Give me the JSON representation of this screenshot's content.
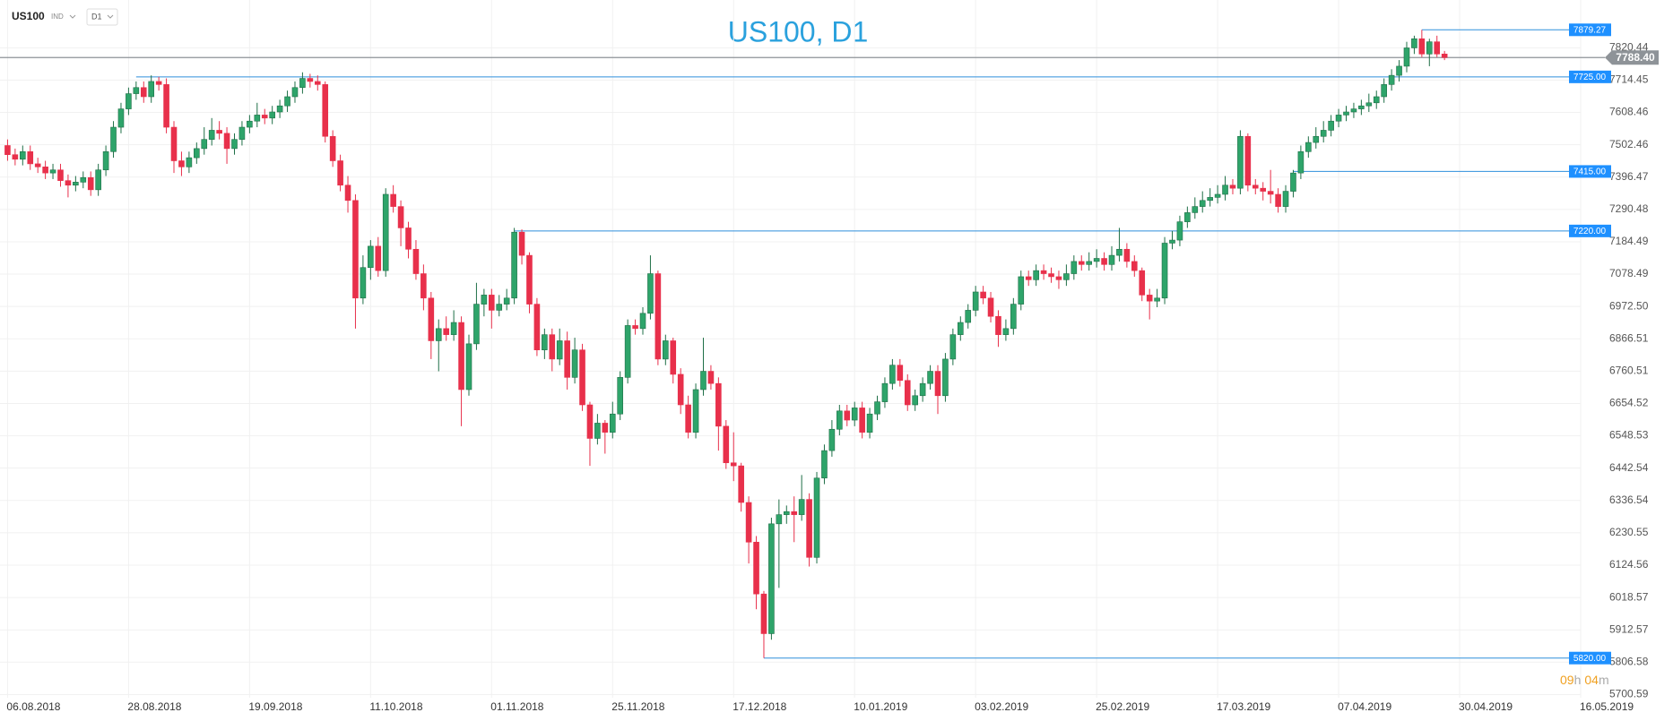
{
  "header": {
    "symbol": "US100",
    "group": "IND",
    "interval": "D1"
  },
  "chart_data": {
    "type": "candlestick",
    "title": "US100, D1",
    "xlim": [
      -1,
      208
    ],
    "xticks": [
      {
        "value": 0,
        "label": "06.08.2018"
      },
      {
        "value": 16,
        "label": "28.08.2018"
      },
      {
        "value": 32,
        "label": "19.09.2018"
      },
      {
        "value": 48,
        "label": "11.10.2018"
      },
      {
        "value": 64,
        "label": "01.11.2018"
      },
      {
        "value": 80,
        "label": "25.11.2018"
      },
      {
        "value": 96,
        "label": "17.12.2018"
      },
      {
        "value": 112,
        "label": "10.01.2019"
      },
      {
        "value": 128,
        "label": "03.02.2019"
      },
      {
        "value": 144,
        "label": "25.02.2019"
      },
      {
        "value": 160,
        "label": "17.03.2019"
      },
      {
        "value": 176,
        "label": "07.04.2019"
      },
      {
        "value": 192,
        "label": "30.04.2019"
      },
      {
        "value": 208,
        "label": "16.05.2019"
      }
    ],
    "ylim": [
      5690,
      7977
    ],
    "yticks": [
      7820.44,
      7714.45,
      7608.46,
      7502.46,
      7396.47,
      7290.48,
      7184.49,
      7078.49,
      {
        "value": 6972.5,
        "label": "6972.50"
      },
      6866.51,
      6760.51,
      6654.52,
      6548.53,
      6442.54,
      6336.54,
      6230.55,
      6124.56,
      6018.57,
      5912.57,
      5806.58,
      5700.59
    ],
    "grid": true,
    "up_color": "#2ea46a",
    "down_color": "#e8304b",
    "level_color": "#2f8fdc",
    "price_color": "#8e9398",
    "ohlc": [
      [
        7500,
        7520,
        7450,
        7470
      ],
      [
        7470,
        7490,
        7435,
        7455
      ],
      [
        7455,
        7500,
        7435,
        7480
      ],
      [
        7480,
        7500,
        7420,
        7440
      ],
      [
        7440,
        7460,
        7410,
        7430
      ],
      [
        7430,
        7450,
        7390,
        7410
      ],
      [
        7410,
        7440,
        7390,
        7420
      ],
      [
        7420,
        7440,
        7365,
        7385
      ],
      [
        7385,
        7405,
        7330,
        7370
      ],
      [
        7370,
        7400,
        7350,
        7380
      ],
      [
        7380,
        7415,
        7360,
        7395
      ],
      [
        7395,
        7415,
        7335,
        7355
      ],
      [
        7355,
        7440,
        7335,
        7420
      ],
      [
        7420,
        7500,
        7400,
        7480
      ],
      [
        7480,
        7580,
        7460,
        7560
      ],
      [
        7560,
        7640,
        7540,
        7620
      ],
      [
        7620,
        7690,
        7600,
        7670
      ],
      [
        7670,
        7710,
        7650,
        7690
      ],
      [
        7690,
        7710,
        7640,
        7660
      ],
      [
        7660,
        7730,
        7640,
        7710
      ],
      [
        7710,
        7725,
        7680,
        7700
      ],
      [
        7700,
        7720,
        7540,
        7560
      ],
      [
        7560,
        7580,
        7410,
        7450
      ],
      [
        7450,
        7480,
        7400,
        7430
      ],
      [
        7430,
        7480,
        7410,
        7460
      ],
      [
        7460,
        7510,
        7440,
        7490
      ],
      [
        7490,
        7560,
        7470,
        7520
      ],
      [
        7520,
        7590,
        7500,
        7550
      ],
      [
        7550,
        7580,
        7520,
        7540
      ],
      [
        7540,
        7560,
        7440,
        7490
      ],
      [
        7490,
        7540,
        7470,
        7520
      ],
      [
        7520,
        7580,
        7500,
        7560
      ],
      [
        7560,
        7600,
        7540,
        7580
      ],
      [
        7580,
        7640,
        7560,
        7600
      ],
      [
        7600,
        7620,
        7570,
        7590
      ],
      [
        7590,
        7630,
        7570,
        7610
      ],
      [
        7610,
        7650,
        7590,
        7630
      ],
      [
        7630,
        7680,
        7610,
        7660
      ],
      [
        7660,
        7710,
        7640,
        7690
      ],
      [
        7690,
        7740,
        7670,
        7720
      ],
      [
        7720,
        7735,
        7690,
        7710
      ],
      [
        7710,
        7730,
        7680,
        7700
      ],
      [
        7700,
        7710,
        7510,
        7530
      ],
      [
        7530,
        7550,
        7430,
        7450
      ],
      [
        7450,
        7470,
        7350,
        7370
      ],
      [
        7370,
        7400,
        7280,
        7320
      ],
      [
        7320,
        7340,
        6900,
        7000
      ],
      [
        7000,
        7140,
        6980,
        7100
      ],
      [
        7100,
        7190,
        7060,
        7170
      ],
      [
        7170,
        7200,
        7070,
        7090
      ],
      [
        7090,
        7360,
        7070,
        7340
      ],
      [
        7340,
        7370,
        7280,
        7300
      ],
      [
        7300,
        7320,
        7170,
        7230
      ],
      [
        7230,
        7250,
        7130,
        7160
      ],
      [
        7160,
        7190,
        7060,
        7080
      ],
      [
        7080,
        7110,
        6960,
        7000
      ],
      [
        7000,
        7020,
        6800,
        6860
      ],
      [
        6860,
        6930,
        6760,
        6900
      ],
      [
        6900,
        6940,
        6860,
        6880
      ],
      [
        6880,
        6960,
        6860,
        6920
      ],
      [
        6920,
        6940,
        6580,
        6700
      ],
      [
        6700,
        6880,
        6680,
        6850
      ],
      [
        6850,
        7050,
        6830,
        6980
      ],
      [
        6980,
        7030,
        6940,
        7010
      ],
      [
        7010,
        7030,
        6900,
        6960
      ],
      [
        6960,
        7010,
        6940,
        6980
      ],
      [
        6980,
        7030,
        6960,
        7000
      ],
      [
        7000,
        7230,
        6980,
        7216
      ],
      [
        7216,
        7225,
        7110,
        7140
      ],
      [
        7140,
        7150,
        6950,
        6980
      ],
      [
        6980,
        7000,
        6810,
        6830
      ],
      [
        6830,
        6900,
        6800,
        6880
      ],
      [
        6880,
        6900,
        6760,
        6800
      ],
      [
        6800,
        6900,
        6780,
        6860
      ],
      [
        6860,
        6890,
        6700,
        6740
      ],
      [
        6740,
        6870,
        6720,
        6830
      ],
      [
        6830,
        6850,
        6630,
        6650
      ],
      [
        6650,
        6660,
        6450,
        6540
      ],
      [
        6540,
        6620,
        6520,
        6590
      ],
      [
        6590,
        6600,
        6490,
        6560
      ],
      [
        6560,
        6660,
        6540,
        6620
      ],
      [
        6620,
        6760,
        6600,
        6740
      ],
      [
        6740,
        6930,
        6720,
        6910
      ],
      [
        6910,
        6930,
        6880,
        6900
      ],
      [
        6900,
        6970,
        6880,
        6950
      ],
      [
        6950,
        7140,
        6930,
        7080
      ],
      [
        7080,
        7090,
        6780,
        6800
      ],
      [
        6800,
        6880,
        6780,
        6860
      ],
      [
        6860,
        6870,
        6720,
        6750
      ],
      [
        6750,
        6770,
        6620,
        6650
      ],
      [
        6650,
        6680,
        6540,
        6560
      ],
      [
        6560,
        6720,
        6540,
        6700
      ],
      [
        6700,
        6870,
        6680,
        6760
      ],
      [
        6760,
        6780,
        6700,
        6720
      ],
      [
        6720,
        6740,
        6500,
        6580
      ],
      [
        6580,
        6600,
        6440,
        6460
      ],
      [
        6460,
        6560,
        6400,
        6450
      ],
      [
        6450,
        6460,
        6300,
        6330
      ],
      [
        6330,
        6350,
        6130,
        6200
      ],
      [
        6200,
        6220,
        5980,
        6030
      ],
      [
        6030,
        6040,
        5820,
        5900
      ],
      [
        5900,
        6280,
        5880,
        6260
      ],
      [
        6260,
        6340,
        6050,
        6290
      ],
      [
        6290,
        6320,
        6260,
        6300
      ],
      [
        6300,
        6350,
        6200,
        6290
      ],
      [
        6290,
        6420,
        6270,
        6340
      ],
      [
        6340,
        6360,
        6120,
        6150
      ],
      [
        6150,
        6430,
        6130,
        6410
      ],
      [
        6410,
        6520,
        6390,
        6500
      ],
      [
        6500,
        6600,
        6480,
        6570
      ],
      [
        6570,
        6650,
        6550,
        6630
      ],
      [
        6630,
        6650,
        6580,
        6600
      ],
      [
        6600,
        6660,
        6580,
        6640
      ],
      [
        6640,
        6660,
        6540,
        6560
      ],
      [
        6560,
        6640,
        6540,
        6620
      ],
      [
        6620,
        6680,
        6600,
        6660
      ],
      [
        6660,
        6740,
        6640,
        6720
      ],
      [
        6720,
        6800,
        6700,
        6780
      ],
      [
        6780,
        6800,
        6710,
        6730
      ],
      [
        6730,
        6750,
        6630,
        6650
      ],
      [
        6650,
        6700,
        6630,
        6680
      ],
      [
        6680,
        6740,
        6660,
        6720
      ],
      [
        6720,
        6780,
        6700,
        6760
      ],
      [
        6760,
        6780,
        6620,
        6680
      ],
      [
        6680,
        6820,
        6660,
        6800
      ],
      [
        6800,
        6900,
        6780,
        6880
      ],
      [
        6880,
        6940,
        6860,
        6920
      ],
      [
        6920,
        6980,
        6900,
        6960
      ],
      [
        6960,
        7040,
        6940,
        7020
      ],
      [
        7020,
        7040,
        6980,
        7000
      ],
      [
        7000,
        7020,
        6920,
        6940
      ],
      [
        6940,
        6960,
        6840,
        6880
      ],
      [
        6880,
        6930,
        6860,
        6900
      ],
      [
        6900,
        7000,
        6880,
        6980
      ],
      [
        6980,
        7090,
        6960,
        7070
      ],
      [
        7070,
        7090,
        7040,
        7060
      ],
      [
        7060,
        7110,
        7040,
        7090
      ],
      [
        7090,
        7110,
        7060,
        7080
      ],
      [
        7080,
        7100,
        7050,
        7070
      ],
      [
        7070,
        7090,
        7030,
        7060
      ],
      [
        7060,
        7110,
        7040,
        7080
      ],
      [
        7080,
        7140,
        7060,
        7120
      ],
      [
        7120,
        7140,
        7090,
        7110
      ],
      [
        7110,
        7150,
        7090,
        7120
      ],
      [
        7120,
        7160,
        7100,
        7130
      ],
      [
        7130,
        7150,
        7090,
        7110
      ],
      [
        7110,
        7170,
        7090,
        7140
      ],
      [
        7140,
        7230,
        7120,
        7160
      ],
      [
        7160,
        7180,
        7100,
        7120
      ],
      [
        7120,
        7140,
        7070,
        7090
      ],
      [
        7090,
        7100,
        6990,
        7010
      ],
      [
        7010,
        7030,
        6930,
        6990
      ],
      [
        6990,
        7030,
        6970,
        7000
      ],
      [
        7000,
        7200,
        6980,
        7180
      ],
      [
        7180,
        7220,
        7160,
        7190
      ],
      [
        7190,
        7270,
        7170,
        7250
      ],
      [
        7250,
        7300,
        7230,
        7280
      ],
      [
        7280,
        7330,
        7260,
        7300
      ],
      [
        7300,
        7350,
        7280,
        7320
      ],
      [
        7320,
        7360,
        7300,
        7330
      ],
      [
        7330,
        7370,
        7310,
        7340
      ],
      [
        7340,
        7400,
        7320,
        7370
      ],
      [
        7370,
        7390,
        7340,
        7360
      ],
      [
        7360,
        7550,
        7340,
        7530
      ],
      [
        7530,
        7540,
        7350,
        7370
      ],
      [
        7370,
        7390,
        7340,
        7360
      ],
      [
        7360,
        7380,
        7320,
        7350
      ],
      [
        7350,
        7420,
        7310,
        7340
      ],
      [
        7340,
        7360,
        7280,
        7300
      ],
      [
        7300,
        7370,
        7280,
        7350
      ],
      [
        7350,
        7420,
        7330,
        7410
      ],
      [
        7410,
        7500,
        7390,
        7480
      ],
      [
        7480,
        7530,
        7460,
        7510
      ],
      [
        7510,
        7560,
        7490,
        7530
      ],
      [
        7530,
        7580,
        7510,
        7550
      ],
      [
        7550,
        7600,
        7530,
        7580
      ],
      [
        7580,
        7620,
        7560,
        7600
      ],
      [
        7600,
        7630,
        7580,
        7610
      ],
      [
        7610,
        7640,
        7590,
        7620
      ],
      [
        7620,
        7650,
        7600,
        7630
      ],
      [
        7630,
        7670,
        7610,
        7640
      ],
      [
        7640,
        7680,
        7620,
        7660
      ],
      [
        7660,
        7720,
        7640,
        7700
      ],
      [
        7700,
        7750,
        7680,
        7730
      ],
      [
        7730,
        7780,
        7710,
        7760
      ],
      [
        7760,
        7840,
        7740,
        7820
      ],
      [
        7820,
        7860,
        7800,
        7850
      ],
      [
        7850,
        7879.27,
        7790,
        7800
      ],
      [
        7800,
        7850,
        7760,
        7840
      ],
      [
        7840,
        7860,
        7790,
        7800
      ],
      [
        7800,
        7810,
        7780,
        7788.4
      ]
    ],
    "levels": [
      {
        "value": 7879.27,
        "label": "7879.27",
        "from": 187
      },
      {
        "value": 7725,
        "label": "7725.00",
        "from": 17
      },
      {
        "value": 7415,
        "label": "7415.00",
        "from": 170
      },
      {
        "value": 7220,
        "label": "7220.00",
        "from": 67
      },
      {
        "value": 5820,
        "label": "5820.00",
        "from": 100
      }
    ],
    "current_price": {
      "value": 7788.4,
      "label": "7788.40"
    },
    "countdown": {
      "hours": "09",
      "hours_unit": "h",
      "minutes": "04",
      "minutes_unit": "m"
    }
  }
}
